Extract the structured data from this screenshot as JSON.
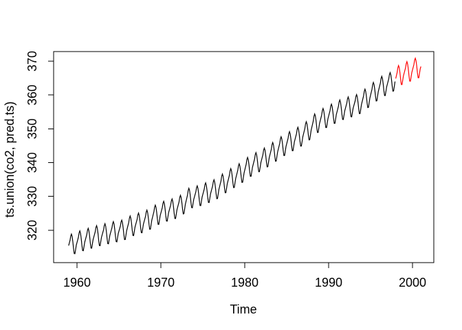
{
  "figure": {
    "background": "#FFFFFF"
  },
  "chart_data": {
    "type": "line",
    "title": "",
    "xlabel": "Time",
    "ylabel": "ts.union(co2, pred.ts)",
    "x_ticks": [
      1960,
      1970,
      1980,
      1990,
      2000
    ],
    "y_ticks": [
      320,
      330,
      340,
      350,
      360,
      370
    ],
    "xlim": [
      1957.21,
      2002.54
    ],
    "ylim": [
      310.4,
      372.85
    ],
    "grid": false,
    "legend": "none",
    "frequency": 12,
    "seasonal_offsets": [
      -0.1,
      0.6,
      1.3,
      2.5,
      3.0,
      2.2,
      0.6,
      -1.5,
      -3.1,
      -3.2,
      -2.0,
      -0.8
    ],
    "series": [
      {
        "name": "co2",
        "color": "#000000",
        "start_year": 1959,
        "n_months": 468,
        "annual_means": [
          315.97,
          316.91,
          317.64,
          318.45,
          318.99,
          319.62,
          320.04,
          321.37,
          322.18,
          323.05,
          324.62,
          325.68,
          326.32,
          327.46,
          329.68,
          330.19,
          331.12,
          332.03,
          333.84,
          335.41,
          336.84,
          338.76,
          340.12,
          341.48,
          343.15,
          344.87,
          346.35,
          347.61,
          349.31,
          351.69,
          353.2,
          354.45,
          355.7,
          356.54,
          357.21,
          358.96,
          360.97,
          362.74,
          363.76
        ],
        "next_mean": 366.0
      },
      {
        "name": "pred.ts",
        "color": "#FF0000",
        "start_year": 1998,
        "n_months": 37,
        "annual_means": [
          366.0,
          367.0,
          368.0,
          369.0
        ],
        "prev_mean": 363.76
      }
    ]
  }
}
